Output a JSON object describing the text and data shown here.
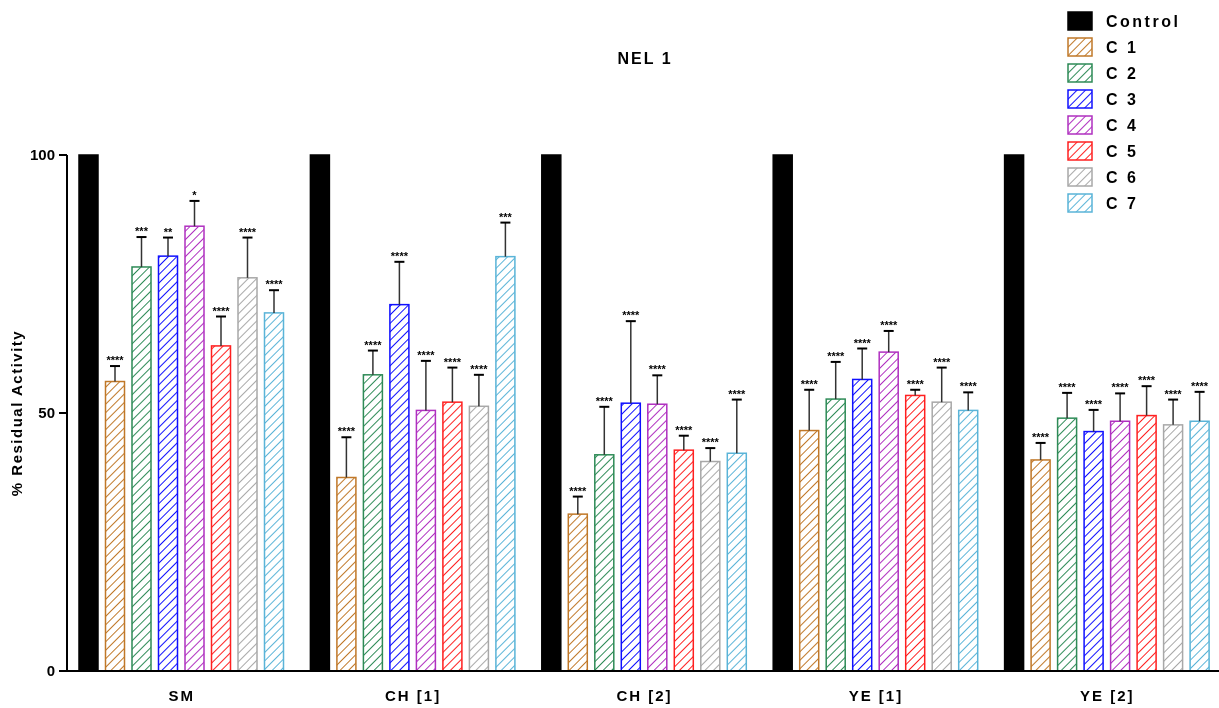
{
  "chart_data": {
    "type": "bar",
    "title": "NEL 1",
    "ylabel": "% Residual Activity",
    "categories": [
      "SM",
      "CH [1]",
      "CH [2]",
      "YE [1]",
      "YE [2]"
    ],
    "ylim": [
      0,
      100
    ],
    "yticks": [
      0,
      50,
      100
    ],
    "legend": "top right",
    "series": [
      {
        "name": "Control",
        "color": "#000000",
        "values": [
          100,
          100,
          100,
          100,
          100
        ]
      },
      {
        "name": "C 1",
        "color": "#c07828",
        "values": [
          56.1,
          37.5,
          30.4,
          46.6,
          40.9
        ],
        "errors": [
          3,
          7.8,
          3.4,
          7.9,
          3.3
        ]
      },
      {
        "name": "C 2",
        "color": "#2e8b57",
        "values": [
          78.3,
          57.4,
          41.9,
          52.7,
          49.0
        ],
        "errors": [
          5.8,
          4.7,
          9.3,
          7.2,
          4.9
        ]
      },
      {
        "name": "C 3",
        "color": "#1010ff",
        "values": [
          80.4,
          71.0,
          51.9,
          56.5,
          46.4
        ],
        "errors": [
          3.6,
          8.3,
          15.9,
          6,
          4.2
        ]
      },
      {
        "name": "C 4",
        "color": "#b030c0",
        "values": [
          86.2,
          50.5,
          51.7,
          61.8,
          48.4
        ],
        "errors": [
          4.9,
          9.6,
          5.6,
          4.1,
          5.4
        ]
      },
      {
        "name": "C 5",
        "color": "#ff2020",
        "values": [
          63.0,
          52.1,
          42.8,
          53.4,
          49.5
        ],
        "errors": [
          5.7,
          6.7,
          2.8,
          1.1,
          5.7
        ]
      },
      {
        "name": "C 6",
        "color": "#a8a8a8",
        "values": [
          76.2,
          51.3,
          40.6,
          52.1,
          47.7
        ],
        "errors": [
          7.8,
          6.1,
          2.6,
          6.7,
          4.9
        ]
      },
      {
        "name": "C 7",
        "color": "#5ab4d8",
        "values": [
          69.4,
          80.3,
          42.2,
          50.5,
          48.4
        ],
        "errors": [
          4.4,
          6.6,
          10.4,
          3.5,
          5.7
        ]
      }
    ],
    "annotations": [
      "****",
      "****",
      "****",
      "****",
      "****",
      "***",
      "****",
      "****",
      "****",
      "****",
      "**",
      "****",
      "****",
      "****",
      "****",
      "*",
      "****",
      "****",
      "****",
      "****",
      "****",
      "****",
      "****",
      "****",
      "****",
      "****",
      "****",
      "****",
      "****",
      "****",
      "****",
      "***",
      "****",
      "****",
      "****"
    ]
  }
}
